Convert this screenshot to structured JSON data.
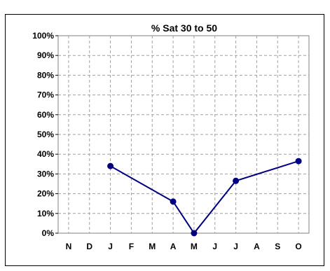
{
  "chart_data": {
    "type": "line",
    "title": "% Sat 30 to 50",
    "categories": [
      "N",
      "D",
      "J",
      "F",
      "M",
      "A",
      "M",
      "J",
      "J",
      "A",
      "S",
      "O"
    ],
    "series": [
      {
        "values": [
          null,
          null,
          34,
          null,
          null,
          16,
          0,
          null,
          26.5,
          null,
          null,
          36.5
        ]
      }
    ],
    "ylim": [
      0,
      100
    ],
    "yticks": [
      "0%",
      "10%",
      "20%",
      "30%",
      "40%",
      "50%",
      "60%",
      "70%",
      "80%",
      "90%",
      "100%"
    ],
    "grid": true,
    "line_color": "#000080"
  }
}
